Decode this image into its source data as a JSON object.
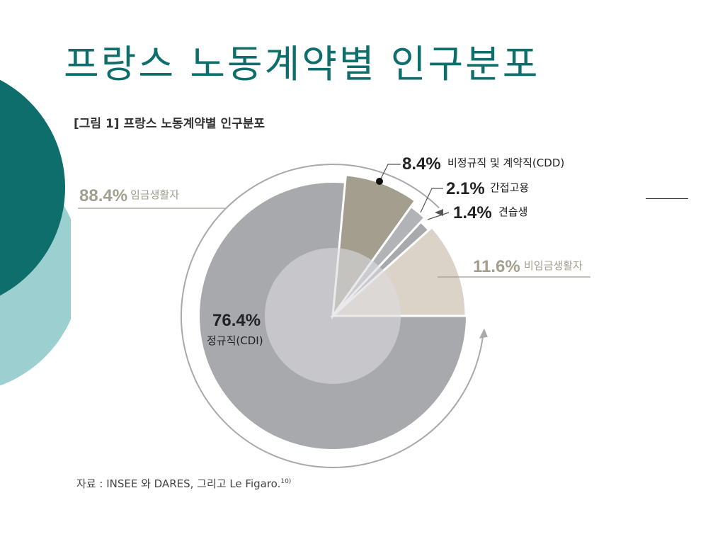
{
  "slide": {
    "title": "프랑스 노동계약별 인구분포"
  },
  "figure": {
    "caption": "[그림 1] 프랑스 노동계약별 인구분포"
  },
  "source": {
    "text": "자료 : INSEE 와 DARES, 그리고 Le Figaro.",
    "footnote": "10)"
  },
  "colors": {
    "teal_dark": "#0d6e6b",
    "teal_light": "#9ccfd0",
    "employed": "#a8a9ad",
    "cdd": "#a39e8e",
    "interim": "#b2b3b7",
    "apprentice": "#a8a9ad",
    "nonsalaried": "#dcd3c8",
    "inner": "#dcdcdf",
    "label_gold": "#a39e8e"
  },
  "chart_data": {
    "type": "pie",
    "groups": [
      {
        "pct": "88.4%",
        "label": "임금생활자",
        "value": 88.4
      },
      {
        "pct": "11.6%",
        "label": "비임금생활자",
        "value": 11.6
      }
    ],
    "slices": [
      {
        "pct": "76.4%",
        "label": "정규직(CDI)",
        "value": 76.4
      },
      {
        "pct": "8.4%",
        "label": "비정규직 및 계약직(CDD)",
        "value": 8.4
      },
      {
        "pct": "2.1%",
        "label": "간접고용",
        "value": 2.1
      },
      {
        "pct": "1.4%",
        "label": "견습생",
        "value": 1.4
      },
      {
        "pct": "11.6%",
        "label": "비임금생활자",
        "value": 11.6
      }
    ]
  }
}
